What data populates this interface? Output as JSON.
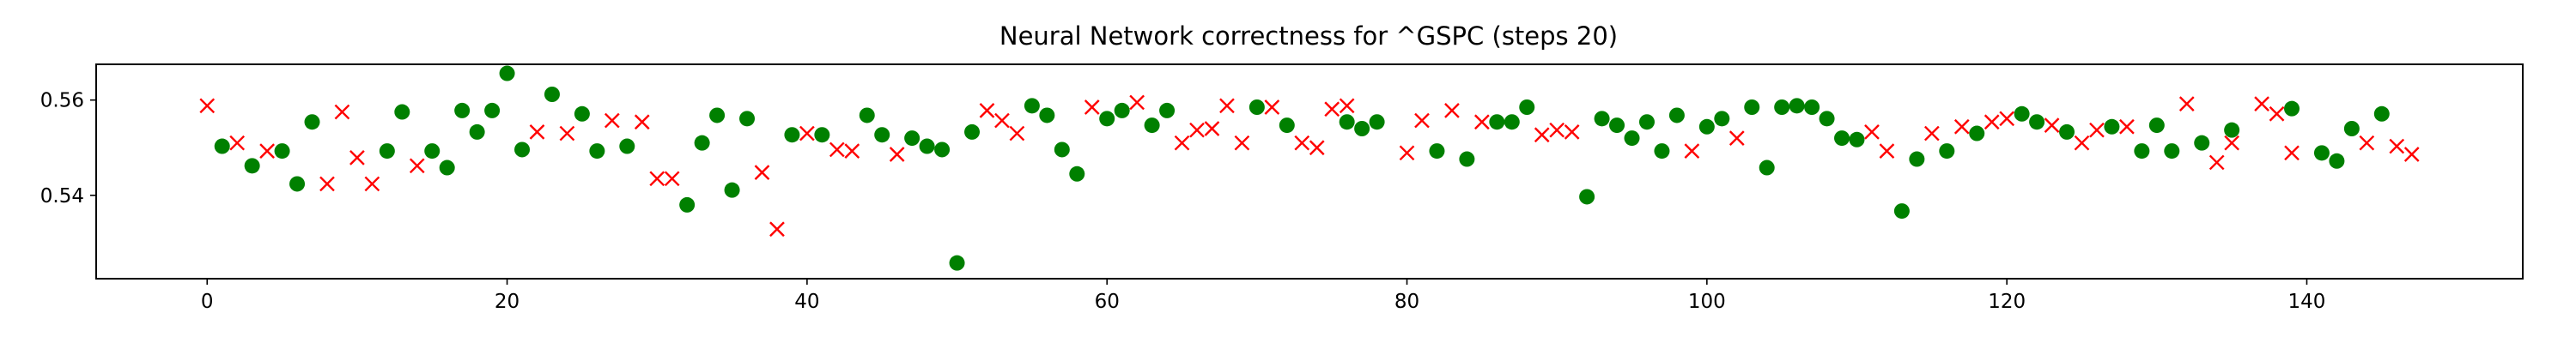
{
  "chart_data": {
    "type": "scatter",
    "title": "Neural Network correctness for ^GSPC (steps 20)",
    "xlabel": "",
    "ylabel": "",
    "xlim": [
      -7.4,
      154.4
    ],
    "ylim": [
      0.5225,
      0.5675
    ],
    "xticks": [
      0,
      20,
      40,
      60,
      80,
      100,
      120,
      140
    ],
    "xtick_labels": [
      "0",
      "20",
      "40",
      "60",
      "80",
      "100",
      "120",
      "140"
    ],
    "yticks": [
      0.54,
      0.56
    ],
    "ytick_labels": [
      "0.54",
      "0.56"
    ],
    "grid": false,
    "series": [
      {
        "marker": "circle",
        "color": "#008000",
        "points": [
          [
            1,
            0.5503
          ],
          [
            3,
            0.5462
          ],
          [
            5,
            0.5493
          ],
          [
            6,
            0.5424
          ],
          [
            7,
            0.5554
          ],
          [
            13,
            0.5575
          ],
          [
            12,
            0.5493
          ],
          [
            15,
            0.5493
          ],
          [
            16,
            0.5458
          ],
          [
            17,
            0.5578
          ],
          [
            18,
            0.5533
          ],
          [
            19,
            0.5578
          ],
          [
            20,
            0.5656
          ],
          [
            21,
            0.5496
          ],
          [
            23,
            0.5612
          ],
          [
            25,
            0.5571
          ],
          [
            26,
            0.5493
          ],
          [
            28,
            0.5503
          ],
          [
            32,
            0.538
          ],
          [
            33,
            0.551
          ],
          [
            34,
            0.5568
          ],
          [
            35,
            0.5411
          ],
          [
            36,
            0.5561
          ],
          [
            39,
            0.5527
          ],
          [
            41,
            0.5527
          ],
          [
            44,
            0.5568
          ],
          [
            45,
            0.5527
          ],
          [
            47,
            0.552
          ],
          [
            48,
            0.5503
          ],
          [
            49,
            0.5496
          ],
          [
            50,
            0.5258
          ],
          [
            51,
            0.5533
          ],
          [
            55,
            0.5588
          ],
          [
            56,
            0.5568
          ],
          [
            57,
            0.5496
          ],
          [
            58,
            0.5445
          ],
          [
            60,
            0.5561
          ],
          [
            61,
            0.5578
          ],
          [
            63,
            0.5547
          ],
          [
            64,
            0.5578
          ],
          [
            70,
            0.5585
          ],
          [
            72,
            0.5547
          ],
          [
            76,
            0.5554
          ],
          [
            77,
            0.554
          ],
          [
            78,
            0.5554
          ],
          [
            82,
            0.5493
          ],
          [
            84,
            0.5476
          ],
          [
            86,
            0.5554
          ],
          [
            87,
            0.5554
          ],
          [
            88,
            0.5585
          ],
          [
            92,
            0.5397
          ],
          [
            93,
            0.5561
          ],
          [
            94,
            0.5547
          ],
          [
            95,
            0.552
          ],
          [
            96,
            0.5554
          ],
          [
            97,
            0.5493
          ],
          [
            98,
            0.5568
          ],
          [
            100,
            0.5544
          ],
          [
            101,
            0.5561
          ],
          [
            103,
            0.5585
          ],
          [
            104,
            0.5458
          ],
          [
            105,
            0.5585
          ],
          [
            106,
            0.5588
          ],
          [
            107,
            0.5585
          ],
          [
            108,
            0.5561
          ],
          [
            109,
            0.552
          ],
          [
            110,
            0.5517
          ],
          [
            113,
            0.5367
          ],
          [
            114,
            0.5476
          ],
          [
            116,
            0.5493
          ],
          [
            118,
            0.553
          ],
          [
            121,
            0.5571
          ],
          [
            122,
            0.5554
          ],
          [
            124,
            0.5533
          ],
          [
            127,
            0.5544
          ],
          [
            129,
            0.5493
          ],
          [
            130,
            0.5547
          ],
          [
            131,
            0.5493
          ],
          [
            133,
            0.551
          ],
          [
            135,
            0.5537
          ],
          [
            139,
            0.5582
          ],
          [
            141,
            0.5489
          ],
          [
            142,
            0.5472
          ],
          [
            143,
            0.554
          ],
          [
            145,
            0.5571
          ]
        ]
      },
      {
        "marker": "x",
        "color": "#ff0000",
        "points": [
          [
            0,
            0.5588
          ],
          [
            2,
            0.551
          ],
          [
            4,
            0.5493
          ],
          [
            8,
            0.5424
          ],
          [
            9,
            0.5575
          ],
          [
            10,
            0.5479
          ],
          [
            11,
            0.5424
          ],
          [
            14,
            0.5462
          ],
          [
            22,
            0.5533
          ],
          [
            24,
            0.553
          ],
          [
            27,
            0.5557
          ],
          [
            29,
            0.5554
          ],
          [
            30,
            0.5435
          ],
          [
            31,
            0.5435
          ],
          [
            37,
            0.5448
          ],
          [
            38,
            0.5329
          ],
          [
            40,
            0.553
          ],
          [
            42,
            0.5496
          ],
          [
            43,
            0.5493
          ],
          [
            46,
            0.5486
          ],
          [
            52,
            0.5578
          ],
          [
            53,
            0.5557
          ],
          [
            54,
            0.553
          ],
          [
            59,
            0.5585
          ],
          [
            62,
            0.5595
          ],
          [
            65,
            0.551
          ],
          [
            66,
            0.5537
          ],
          [
            67,
            0.554
          ],
          [
            68,
            0.5588
          ],
          [
            69,
            0.551
          ],
          [
            71,
            0.5585
          ],
          [
            73,
            0.551
          ],
          [
            74,
            0.55
          ],
          [
            75,
            0.5581
          ],
          [
            76,
            0.5588
          ],
          [
            80,
            0.5489
          ],
          [
            81,
            0.5557
          ],
          [
            83,
            0.5578
          ],
          [
            85,
            0.5554
          ],
          [
            89,
            0.5527
          ],
          [
            90,
            0.5537
          ],
          [
            91,
            0.5533
          ],
          [
            99,
            0.5493
          ],
          [
            102,
            0.552
          ],
          [
            111,
            0.5533
          ],
          [
            112,
            0.5493
          ],
          [
            115,
            0.553
          ],
          [
            117,
            0.5544
          ],
          [
            119,
            0.5554
          ],
          [
            120,
            0.5561
          ],
          [
            123,
            0.5547
          ],
          [
            125,
            0.551
          ],
          [
            126,
            0.5537
          ],
          [
            128,
            0.5544
          ],
          [
            132,
            0.5592
          ],
          [
            134,
            0.5469
          ],
          [
            135,
            0.551
          ],
          [
            137,
            0.5592
          ],
          [
            138,
            0.5571
          ],
          [
            139,
            0.5489
          ],
          [
            144,
            0.551
          ],
          [
            146,
            0.5503
          ],
          [
            147,
            0.5486
          ]
        ]
      }
    ]
  }
}
